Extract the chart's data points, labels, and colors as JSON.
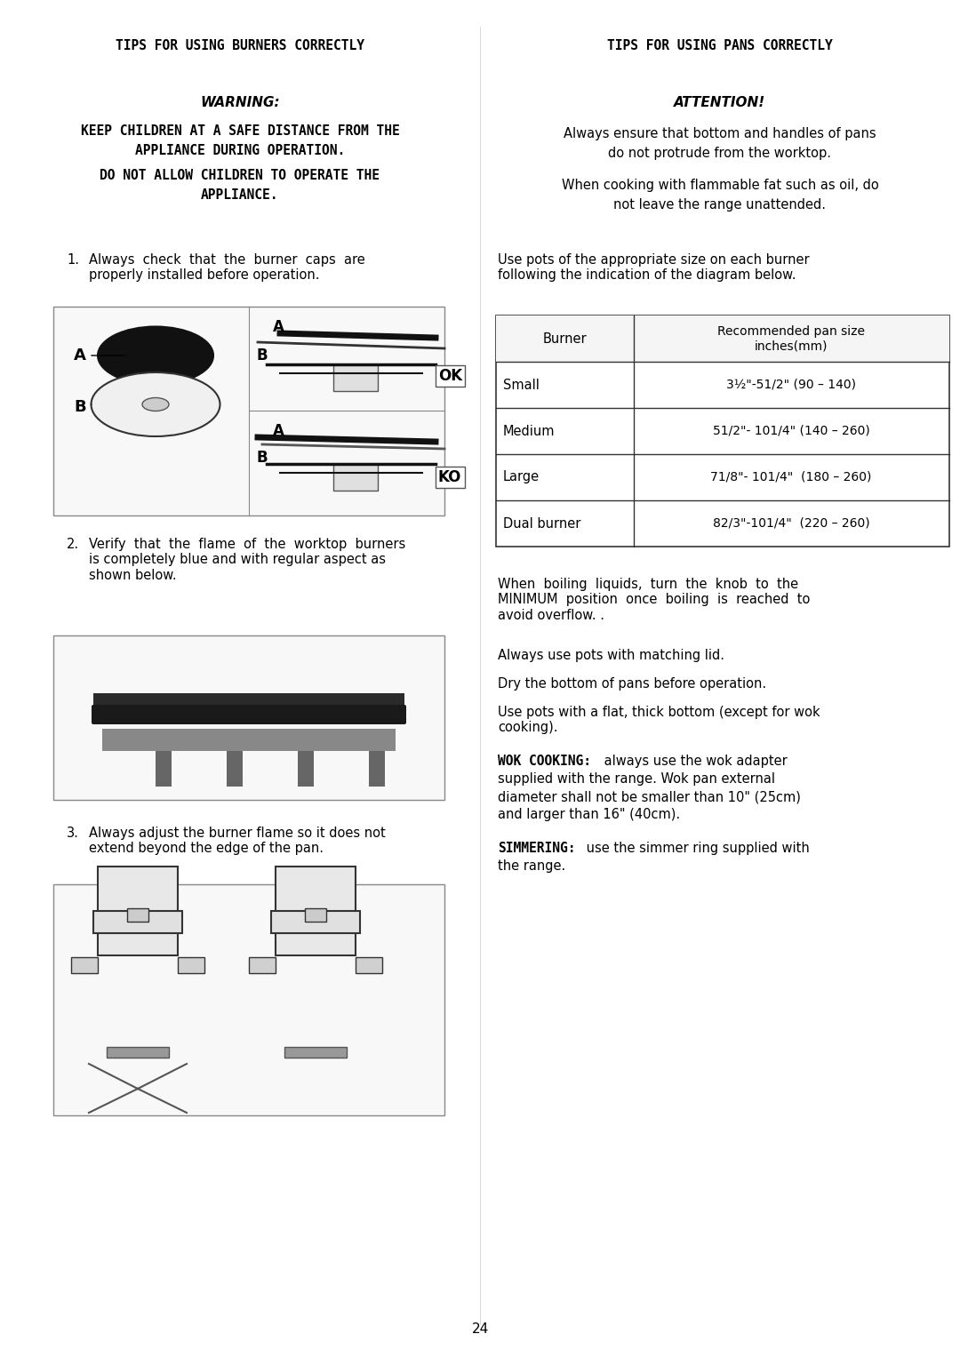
{
  "left_header": "TIPS FOR USING BURNERS CORRECTLY",
  "right_header": "TIPS FOR USING PANS CORRECTLY",
  "left_warning_title": "WARNING:",
  "left_warning_lines": [
    "KEEP CHILDREN AT A SAFE DISTANCE FROM THE",
    "APPLIANCE DURING OPERATION.",
    "DO NOT ALLOW CHILDREN TO OPERATE THE",
    "APPLIANCE."
  ],
  "right_attention_title": "ATTENTION!",
  "right_attention_lines": [
    "Always ensure that bottom and handles of pans",
    "do not protrude from the worktop.",
    "",
    "When cooking with flammable fat such as oil, do",
    "not leave the range unattended."
  ],
  "left_item1_num": "1.",
  "left_item1_text": "Always  check  that  the  burner  caps  are\nproperly installed before operation.",
  "left_item2_num": "2.",
  "left_item2_text": "Verify  that  the  flame  of  the  worktop  burners\nis completely blue and with regular aspect as\nshown below.",
  "left_item3_num": "3.",
  "left_item3_text": "Always adjust the burner flame so it does not\nextend beyond the edge of the pan.",
  "right_pots_text": "Use pots of the appropriate size on each burner\nfollowing the indication of the diagram below.",
  "table_headers": [
    "Burner",
    "Recommended pan size\ninches(mm)"
  ],
  "table_rows": [
    [
      "Small",
      "3½\"-51/2\" (90 – 140)"
    ],
    [
      "Medium",
      "51/2\"- 101/4\" (140 – 260)"
    ],
    [
      "Large",
      "71/8\"- 101/4\"  (180 – 260)"
    ],
    [
      "Dual burner",
      "82/3\"-101/4\"  (220 – 260)"
    ]
  ],
  "right_extra_lines": [
    "When  boiling  liquids,  turn  the  knob  to  the\nMINIMUM  position  once  boiling  is  reached  to\navoid overflow. .",
    "Always use pots with matching lid.",
    "Dry the bottom of pans before operation.",
    "Use pots with a flat, thick bottom (except for wok\ncooking).",
    "WOK COOKING: always use the wok adapter\nsupplied with the range. Wok pan external\ndiameter shall not be smaller than 10\" (25cm)\nand larger than 16\" (40cm).",
    "SIMMERING: use the simmer ring supplied with\nthe range."
  ],
  "page_number": "24",
  "bg_color": "#ffffff",
  "text_color": "#000000"
}
